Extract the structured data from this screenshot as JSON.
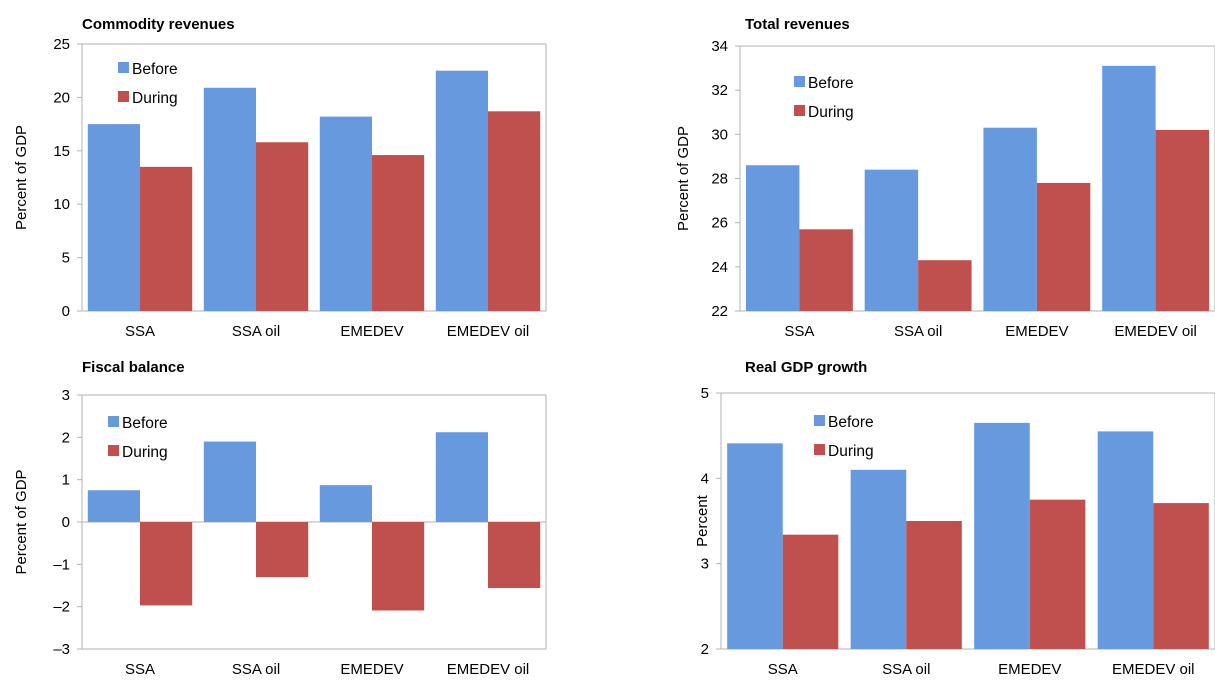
{
  "colors": {
    "before": "#6699dd",
    "during": "#c0504d",
    "frame": "#b3b3b3"
  },
  "chart_data": [
    {
      "type": "bar",
      "title": "Commodity revenues",
      "ylabel": "Percent of GDP",
      "categories": [
        "SSA",
        "SSA oil",
        "EMEDEV",
        "EMEDEV oil"
      ],
      "series": [
        {
          "name": "Before",
          "values": [
            17.5,
            20.9,
            18.2,
            22.5
          ]
        },
        {
          "name": "During",
          "values": [
            13.5,
            15.8,
            14.6,
            18.7
          ]
        }
      ],
      "ylim": [
        0,
        25
      ],
      "yticks": [
        0,
        5,
        10,
        15,
        20,
        25
      ],
      "ytick_labels": [
        "0",
        "5",
        "10",
        "15",
        "20",
        "25"
      ],
      "legend": "top-left",
      "grid": false
    },
    {
      "type": "bar",
      "title": "Total revenues",
      "ylabel": "Percent of GDP",
      "categories": [
        "SSA",
        "SSA oil",
        "EMEDEV",
        "EMEDEV oil"
      ],
      "series": [
        {
          "name": "Before",
          "values": [
            28.6,
            28.4,
            30.3,
            33.1
          ]
        },
        {
          "name": "During",
          "values": [
            25.7,
            24.3,
            27.8,
            30.2
          ]
        }
      ],
      "ylim": [
        22,
        34
      ],
      "yticks": [
        22,
        24,
        26,
        28,
        30,
        32,
        34
      ],
      "ytick_labels": [
        "22",
        "24",
        "26",
        "28",
        "30",
        "32",
        "34"
      ],
      "legend": "top-left",
      "grid": false
    },
    {
      "type": "bar",
      "title": "Fiscal balance",
      "ylabel": "Percent of GDP",
      "categories": [
        "SSA",
        "SSA oil",
        "EMEDEV",
        "EMEDEV oil"
      ],
      "series": [
        {
          "name": "Before",
          "values": [
            0.75,
            1.9,
            0.87,
            2.12
          ]
        },
        {
          "name": "During",
          "values": [
            -1.97,
            -1.3,
            -2.09,
            -1.56
          ]
        }
      ],
      "ylim": [
        -3,
        3
      ],
      "yticks": [
        -3,
        -2,
        -1,
        0,
        1,
        2,
        3
      ],
      "ytick_labels": [
        "–3",
        "–2",
        "–1",
        "0",
        "1",
        "2",
        "3"
      ],
      "legend": "top-left",
      "grid": false
    },
    {
      "type": "bar",
      "title": "Real GDP growth",
      "ylabel": "Percent",
      "categories": [
        "SSA",
        "SSA oil",
        "EMEDEV",
        "EMEDEV oil"
      ],
      "series": [
        {
          "name": "Before",
          "values": [
            4.41,
            4.1,
            4.65,
            4.55
          ]
        },
        {
          "name": "During",
          "values": [
            3.34,
            3.5,
            3.75,
            3.71
          ]
        }
      ],
      "ylim": [
        2,
        5
      ],
      "yticks": [
        2,
        3,
        4,
        5
      ],
      "ytick_labels": [
        "2",
        "3",
        "4",
        "5"
      ],
      "legend": "top-left",
      "grid": false
    }
  ]
}
